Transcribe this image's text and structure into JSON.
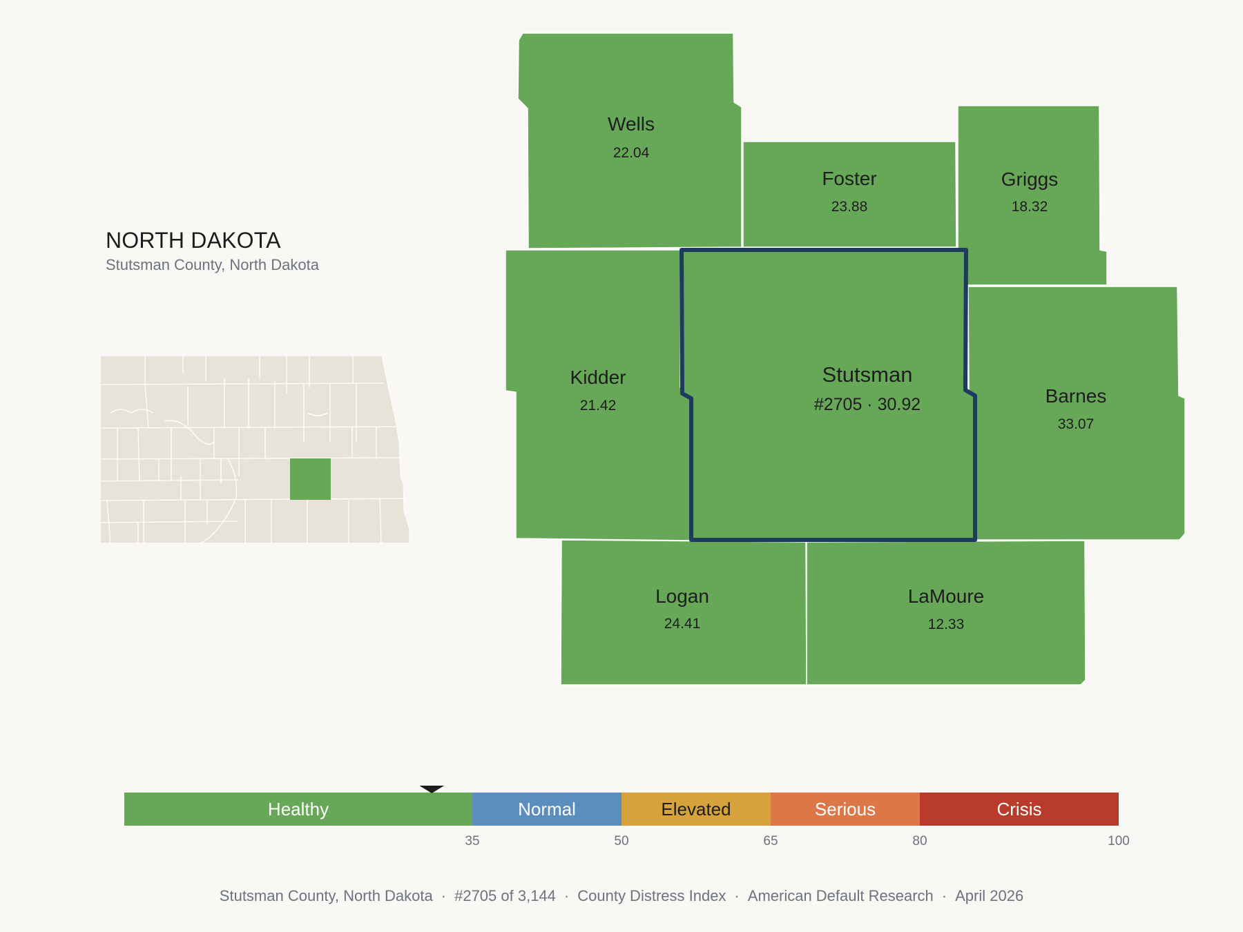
{
  "header": {
    "state_name": "NORTH DAKOTA",
    "county_label": "Stutsman County, North Dakota"
  },
  "counties": [
    {
      "id": "wells",
      "name": "Wells",
      "value": "22.04",
      "color": "#66a758"
    },
    {
      "id": "foster",
      "name": "Foster",
      "value": "23.88",
      "color": "#66a758"
    },
    {
      "id": "griggs",
      "name": "Griggs",
      "value": "18.32",
      "color": "#66a758"
    },
    {
      "id": "kidder",
      "name": "Kidder",
      "value": "21.42",
      "color": "#66a758"
    },
    {
      "id": "stutsman",
      "name": "Stutsman",
      "value": "#2705 · 30.92",
      "color": "#66a758",
      "highlighted": true,
      "outline_color": "#1f3a5f"
    },
    {
      "id": "barnes",
      "name": "Barnes",
      "value": "33.07",
      "color": "#66a758"
    },
    {
      "id": "logan",
      "name": "Logan",
      "value": "24.41",
      "color": "#66a758"
    },
    {
      "id": "lamoure",
      "name": "LaMoure",
      "value": "12.33",
      "color": "#66a758"
    }
  ],
  "inset_map": {
    "base_color": "#e8e3d8",
    "highlight_color": "#66a758"
  },
  "scale": {
    "marker_value": 30.92,
    "min": 0,
    "max": 100,
    "segments": [
      {
        "label": "Healthy",
        "from": 0,
        "to": 35,
        "color": "#66a758",
        "text_color": "#ffffff"
      },
      {
        "label": "Normal",
        "from": 35,
        "to": 50,
        "color": "#5b8dbd",
        "text_color": "#ffffff"
      },
      {
        "label": "Elevated",
        "from": 50,
        "to": 65,
        "color": "#d6a23b",
        "text_color": "#1d1d1d"
      },
      {
        "label": "Serious",
        "from": 65,
        "to": 80,
        "color": "#dd7748",
        "text_color": "#ffffff"
      },
      {
        "label": "Crisis",
        "from": 80,
        "to": 100,
        "color": "#b83b2c",
        "text_color": "#ffffff"
      }
    ],
    "ticks": [
      "35",
      "50",
      "65",
      "80",
      "100"
    ]
  },
  "footer": {
    "items": [
      "Stutsman County, North Dakota",
      "#2705 of 3,144",
      "County Distress Index",
      "American Default Research",
      "April 2026"
    ]
  }
}
